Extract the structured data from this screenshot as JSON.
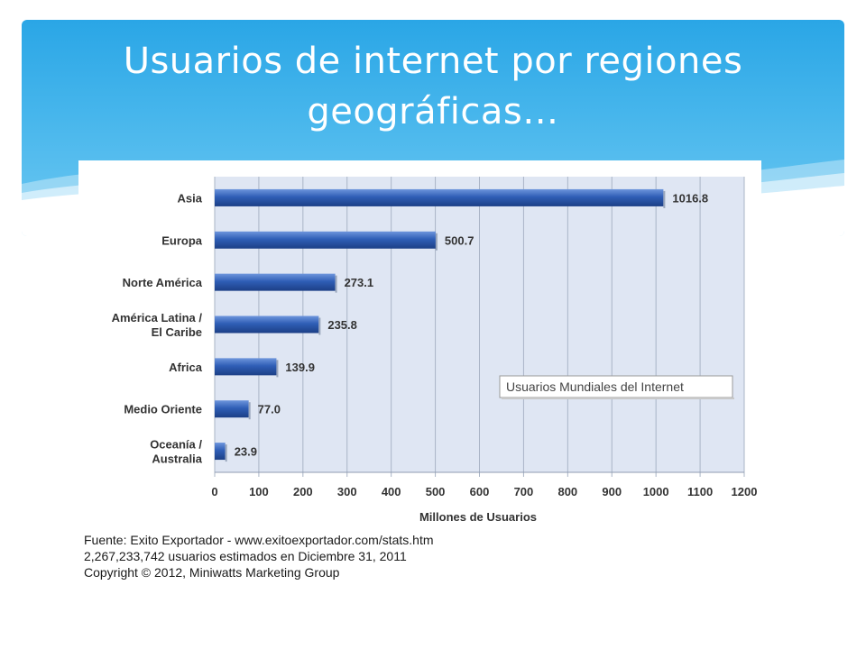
{
  "slide": {
    "title_line1": "Usuarios de internet por regiones",
    "title_line2": "geográficas…"
  },
  "chart_data": {
    "type": "bar",
    "orientation": "horizontal",
    "categories": [
      [
        "Asia"
      ],
      [
        "Europa"
      ],
      [
        "Norte América"
      ],
      [
        "América Latina /",
        "El Caribe"
      ],
      [
        "Africa"
      ],
      [
        "Medio Oriente"
      ],
      [
        "Oceanía  /",
        "Australia"
      ]
    ],
    "values": [
      1016.8,
      500.7,
      273.1,
      235.8,
      139.9,
      77.0,
      23.9
    ],
    "value_labels": [
      "1016.8",
      "500.7",
      "273.1",
      "235.8",
      "139.9",
      "77.0",
      "23.9"
    ],
    "xlabel": "Millones de Usuarios",
    "xlim": [
      0,
      1200
    ],
    "xticks": [
      0,
      100,
      200,
      300,
      400,
      500,
      600,
      700,
      800,
      900,
      1000,
      1100,
      1200
    ],
    "grid": "vertical",
    "legend_box": "Usuarios Mundiales del Internet",
    "legend_placement": "right-middle",
    "bar_color": "#2f5eb6",
    "plot_background": "#dfe6f3"
  },
  "source": {
    "line1": "Fuente: Exito Exportador - www.exitoexportador.com/stats.htm",
    "line2": "2,267,233,742 usuarios estimados en Diciembre 31, 2011",
    "line3": "Copyright © 2012, Miniwatts Marketing Group"
  }
}
